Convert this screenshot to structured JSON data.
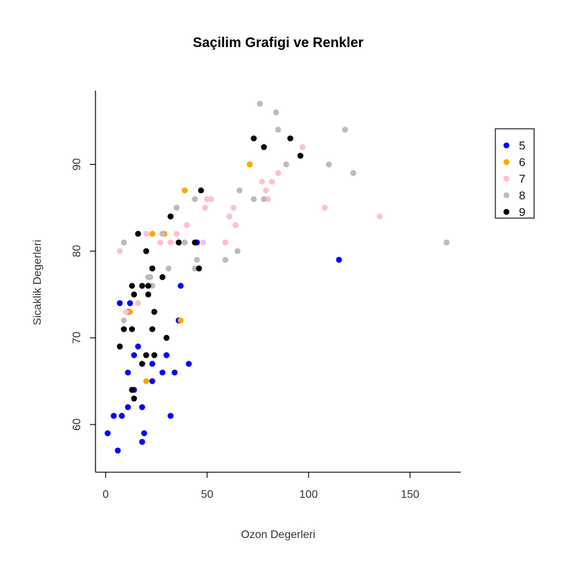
{
  "chart_data": {
    "type": "scatter",
    "title": "Saçilim Grafigi ve Renkler",
    "xlabel": "Ozon Degerleri",
    "ylabel": "Sicaklik Degerleri",
    "xlim": [
      -5,
      175
    ],
    "ylim": [
      54.5,
      98.5
    ],
    "x_ticks": [
      0,
      50,
      100,
      150
    ],
    "y_ticks": [
      60,
      70,
      80,
      90
    ],
    "legend_position": "right",
    "grid": false,
    "series": [
      {
        "name": "5",
        "color": "#0000ff",
        "points": [
          [
            41,
            67
          ],
          [
            36,
            72
          ],
          [
            12,
            74
          ],
          [
            18,
            62
          ],
          [
            28,
            66
          ],
          [
            23,
            65
          ],
          [
            19,
            59
          ],
          [
            8,
            61
          ],
          [
            7,
            74
          ],
          [
            16,
            69
          ],
          [
            11,
            66
          ],
          [
            14,
            68
          ],
          [
            18,
            58
          ],
          [
            14,
            64
          ],
          [
            34,
            66
          ],
          [
            6,
            57
          ],
          [
            30,
            68
          ],
          [
            11,
            62
          ],
          [
            1,
            59
          ],
          [
            11,
            73
          ],
          [
            4,
            61
          ],
          [
            32,
            61
          ],
          [
            23,
            67
          ],
          [
            45,
            81
          ],
          [
            115,
            79
          ],
          [
            37,
            76
          ]
        ]
      },
      {
        "name": "6",
        "color": "#ffa500",
        "points": [
          [
            29,
            82
          ],
          [
            71,
            90
          ],
          [
            39,
            87
          ],
          [
            23,
            82
          ],
          [
            12,
            73
          ],
          [
            37,
            72
          ],
          [
            20,
            65
          ]
        ]
      },
      {
        "name": "7",
        "color": "#ffc0cb",
        "points": [
          [
            135,
            84
          ],
          [
            49,
            85
          ],
          [
            32,
            81
          ],
          [
            64,
            83
          ],
          [
            40,
            83
          ],
          [
            77,
            88
          ],
          [
            97,
            92
          ],
          [
            97,
            92
          ],
          [
            85,
            89
          ],
          [
            10,
            73
          ],
          [
            27,
            81
          ],
          [
            7,
            80
          ],
          [
            48,
            81
          ],
          [
            35,
            82
          ],
          [
            61,
            84
          ],
          [
            79,
            87
          ],
          [
            63,
            85
          ],
          [
            16,
            74
          ],
          [
            80,
            86
          ],
          [
            108,
            85
          ],
          [
            20,
            82
          ],
          [
            52,
            86
          ],
          [
            82,
            88
          ],
          [
            50,
            86
          ],
          [
            64,
            83
          ],
          [
            59,
            81
          ]
        ]
      },
      {
        "name": "8",
        "color": "#bbbbbb",
        "points": [
          [
            39,
            81
          ],
          [
            9,
            81
          ],
          [
            16,
            82
          ],
          [
            78,
            86
          ],
          [
            35,
            85
          ],
          [
            66,
            87
          ],
          [
            122,
            89
          ],
          [
            89,
            90
          ],
          [
            110,
            90
          ],
          [
            44,
            86
          ],
          [
            28,
            82
          ],
          [
            65,
            80
          ],
          [
            22,
            77
          ],
          [
            59,
            79
          ],
          [
            23,
            76
          ],
          [
            31,
            78
          ],
          [
            44,
            78
          ],
          [
            21,
            77
          ],
          [
            9,
            72
          ],
          [
            45,
            79
          ],
          [
            168,
            81
          ],
          [
            73,
            86
          ],
          [
            76,
            97
          ],
          [
            118,
            94
          ],
          [
            84,
            96
          ],
          [
            85,
            94
          ]
        ]
      },
      {
        "name": "9",
        "color": "#000000",
        "points": [
          [
            96,
            91
          ],
          [
            78,
            92
          ],
          [
            73,
            93
          ],
          [
            91,
            93
          ],
          [
            47,
            87
          ],
          [
            32,
            84
          ],
          [
            20,
            80
          ],
          [
            23,
            78
          ],
          [
            21,
            75
          ],
          [
            24,
            73
          ],
          [
            44,
            81
          ],
          [
            21,
            76
          ],
          [
            28,
            77
          ],
          [
            9,
            71
          ],
          [
            13,
            71
          ],
          [
            46,
            78
          ],
          [
            18,
            67
          ],
          [
            13,
            76
          ],
          [
            24,
            68
          ],
          [
            16,
            82
          ],
          [
            13,
            64
          ],
          [
            23,
            71
          ],
          [
            36,
            81
          ],
          [
            7,
            69
          ],
          [
            14,
            63
          ],
          [
            30,
            70
          ],
          [
            14,
            75
          ],
          [
            18,
            76
          ],
          [
            20,
            68
          ]
        ]
      }
    ]
  }
}
